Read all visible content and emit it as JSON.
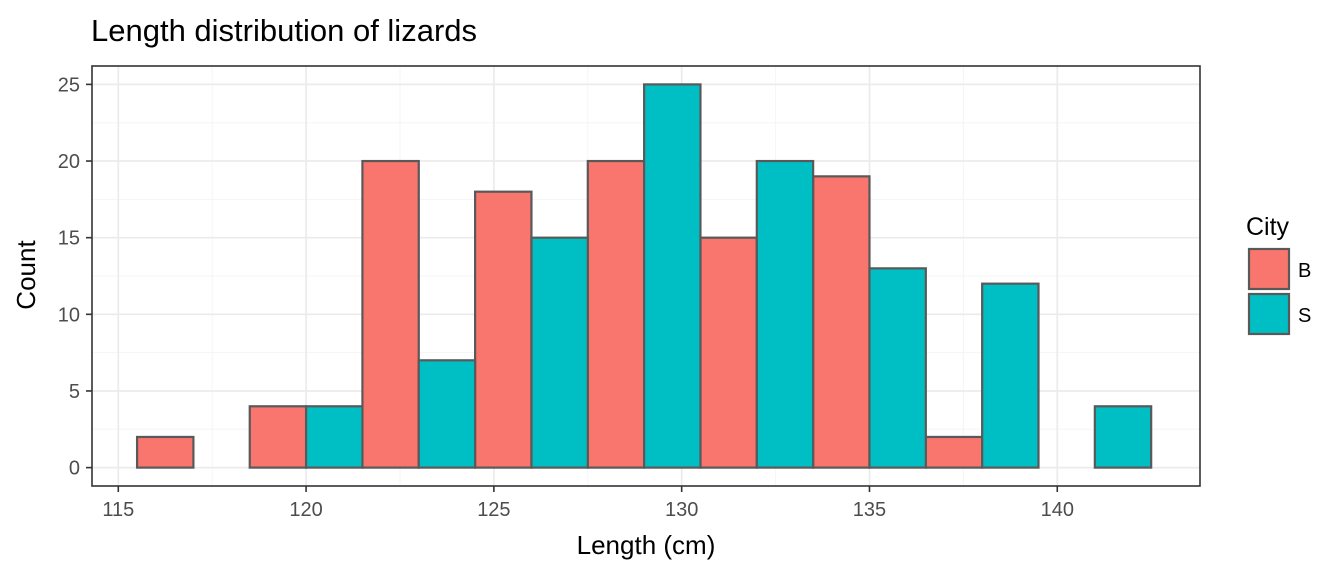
{
  "chart_data": {
    "type": "bar",
    "subtype": "histogram-dodged",
    "title": "Length distribution of lizards",
    "xlabel": "Length (cm)",
    "ylabel": "Count",
    "xlim": [
      114.3,
      143.8
    ],
    "ylim": [
      -1.2,
      26.2
    ],
    "x_ticks": [
      115,
      120,
      125,
      130,
      135,
      140
    ],
    "y_ticks": [
      0,
      5,
      10,
      15,
      20,
      25
    ],
    "grid": true,
    "bin_width": 3,
    "legend": {
      "title": "City",
      "position": "right"
    },
    "series": [
      {
        "name": "B",
        "color": "#F8766D",
        "bins": [
          {
            "start": 115.5,
            "end": 117.0,
            "count": 2
          },
          {
            "start": 118.5,
            "end": 120.0,
            "count": 4
          },
          {
            "start": 121.5,
            "end": 123.0,
            "count": 20
          },
          {
            "start": 124.5,
            "end": 126.0,
            "count": 18
          },
          {
            "start": 127.5,
            "end": 129.0,
            "count": 20
          },
          {
            "start": 130.5,
            "end": 132.0,
            "count": 15
          },
          {
            "start": 133.5,
            "end": 135.0,
            "count": 19
          },
          {
            "start": 136.5,
            "end": 138.0,
            "count": 2
          },
          {
            "start": 139.5,
            "end": 141.0,
            "count": 0
          }
        ]
      },
      {
        "name": "S",
        "color": "#00BFC4",
        "bins": [
          {
            "start": 117.0,
            "end": 118.5,
            "count": 0
          },
          {
            "start": 120.0,
            "end": 121.5,
            "count": 4
          },
          {
            "start": 123.0,
            "end": 124.5,
            "count": 7
          },
          {
            "start": 126.0,
            "end": 127.5,
            "count": 15
          },
          {
            "start": 129.0,
            "end": 130.5,
            "count": 25
          },
          {
            "start": 132.0,
            "end": 133.5,
            "count": 20
          },
          {
            "start": 135.0,
            "end": 136.5,
            "count": 13
          },
          {
            "start": 138.0,
            "end": 139.5,
            "count": 12
          },
          {
            "start": 141.0,
            "end": 142.5,
            "count": 4
          }
        ]
      }
    ],
    "bar_outline_color": "#595959",
    "grid_major_color": "#ebebeb",
    "grid_minor_color": "#f5f5f5",
    "panel_border_color": "#333333"
  }
}
